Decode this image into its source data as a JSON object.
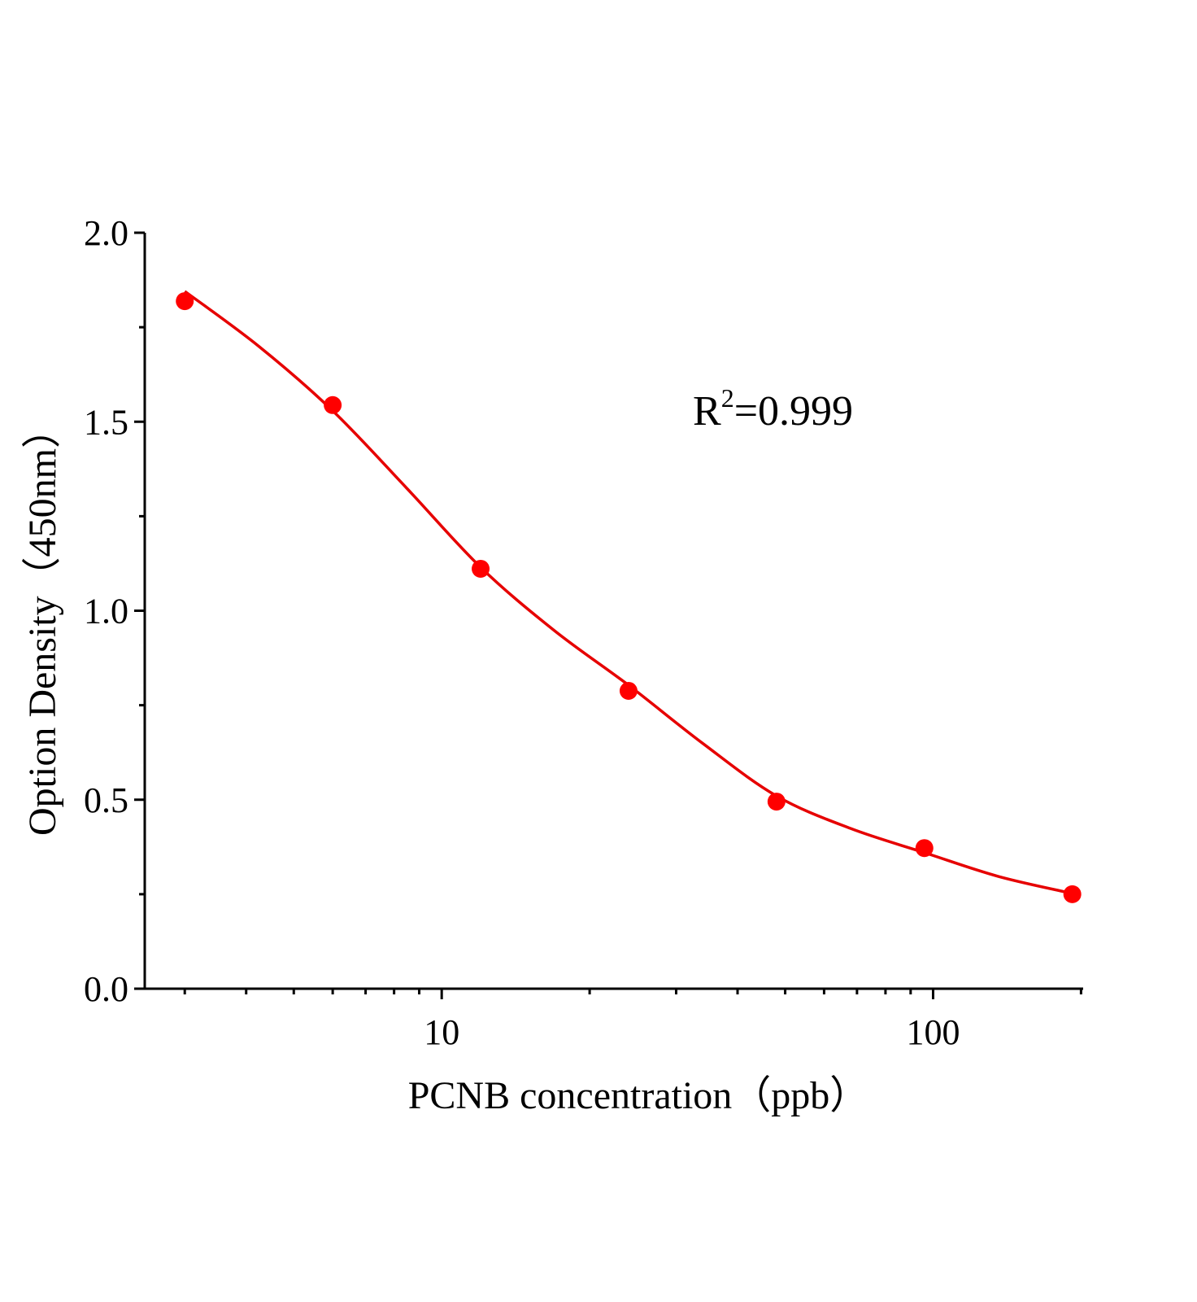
{
  "chart_data": {
    "type": "scatter",
    "x_label": "PCNB  concentration（ppb）",
    "y_label": "Option Density（450nm）",
    "annotation": {
      "base": "R",
      "sup": "2",
      "rest": "=0.999"
    },
    "log_x": true,
    "xlim": [
      2.487,
      202
    ],
    "xticks": [
      10,
      100
    ],
    "x_minor_ticks": [
      3,
      4,
      5,
      6,
      7,
      8,
      9,
      20,
      30,
      40,
      50,
      60,
      70,
      80,
      90,
      200
    ],
    "ylim": [
      0,
      2.0
    ],
    "yticks": [
      {
        "value": 0,
        "label": "0.0"
      },
      0.5,
      {
        "value": 1,
        "label": "1.0"
      },
      1.5,
      {
        "value": 2,
        "label": "2.0"
      }
    ],
    "y_minor_ticks": [
      0.25,
      0.75,
      1.25,
      1.75
    ],
    "points": {
      "color": "#ff0000",
      "x": [
        3,
        6,
        12,
        24,
        48,
        96,
        192
      ],
      "y": [
        1.819,
        1.544,
        1.111,
        0.788,
        0.495,
        0.372,
        0.25
      ]
    },
    "curve": {
      "color": "#e60000",
      "x": [
        3,
        4.24,
        6,
        8.49,
        12,
        16.97,
        24,
        33.9,
        48,
        67.9,
        96,
        135.8,
        192
      ],
      "y": [
        1.845,
        1.7,
        1.529,
        1.324,
        1.115,
        0.947,
        0.803,
        0.65,
        0.51,
        0.424,
        0.36,
        0.297,
        0.252
      ]
    }
  }
}
